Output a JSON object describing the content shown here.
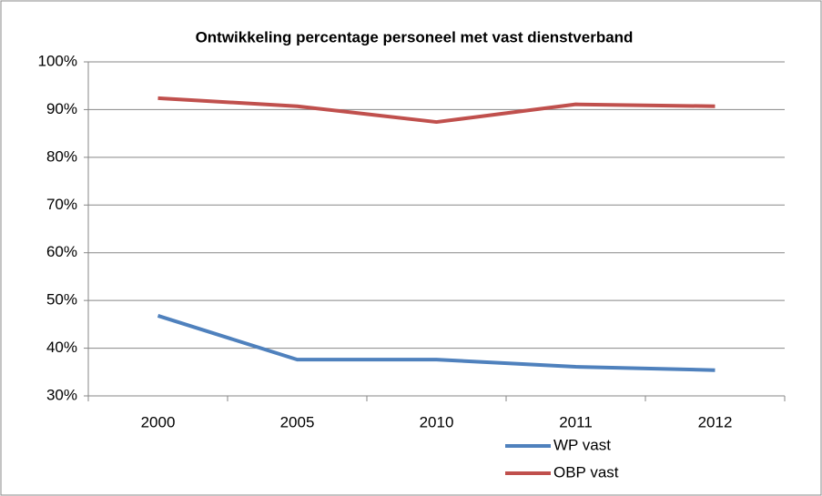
{
  "chart_data": {
    "type": "line",
    "title": "Ontwikkeling percentage personeel met vast dienstverband",
    "categories": [
      "2000",
      "2005",
      "2010",
      "2011",
      "2012"
    ],
    "series": [
      {
        "name": "WP vast",
        "color": "#4f81bd",
        "values": [
          46.8,
          37.6,
          37.6,
          36.1,
          35.4
        ]
      },
      {
        "name": "OBP vast",
        "color": "#c0504d",
        "values": [
          92.4,
          90.7,
          87.4,
          91.1,
          90.7
        ]
      }
    ],
    "ylim": [
      30,
      100
    ],
    "yticks": [
      {
        "value": 30,
        "label": "30%"
      },
      {
        "value": 40,
        "label": "40%"
      },
      {
        "value": 50,
        "label": "50%"
      },
      {
        "value": 60,
        "label": "60%"
      },
      {
        "value": 70,
        "label": "70%"
      },
      {
        "value": 80,
        "label": "80%"
      },
      {
        "value": 90,
        "label": "90%"
      },
      {
        "value": 100,
        "label": "100%"
      }
    ],
    "grid": true,
    "legend": "bottom-right"
  }
}
